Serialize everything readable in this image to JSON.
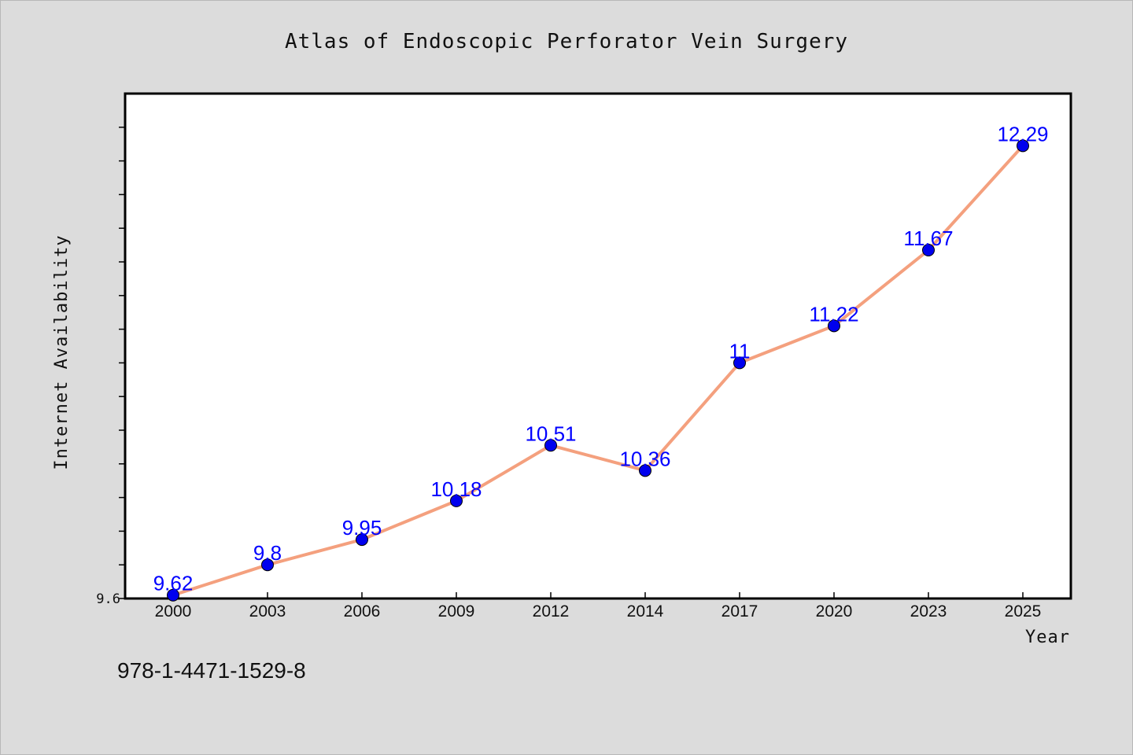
{
  "chart_data": {
    "type": "line",
    "title": "Atlas of Endoscopic Perforator Vein Surgery",
    "xlabel": "Year",
    "ylabel": "Internet Availability",
    "categories": [
      "2000",
      "2003",
      "2006",
      "2009",
      "2012",
      "2014",
      "2017",
      "2020",
      "2023",
      "2025"
    ],
    "series": [
      {
        "values": [
          9.62,
          9.8,
          9.95,
          10.18,
          10.51,
          10.36,
          11,
          11.22,
          11.67,
          12.29
        ]
      }
    ],
    "ylim": [
      9.6,
      12.6
    ],
    "y_tick_labels": [
      "9.6"
    ],
    "grid": false,
    "line_color": "#f4a07e",
    "marker_color": "#0000ee",
    "label_color": "#0000ff",
    "plot_background": "#ffffff",
    "page_background": "#dcdcdc"
  },
  "footer": {
    "isbn": "978-1-4471-1529-8"
  }
}
